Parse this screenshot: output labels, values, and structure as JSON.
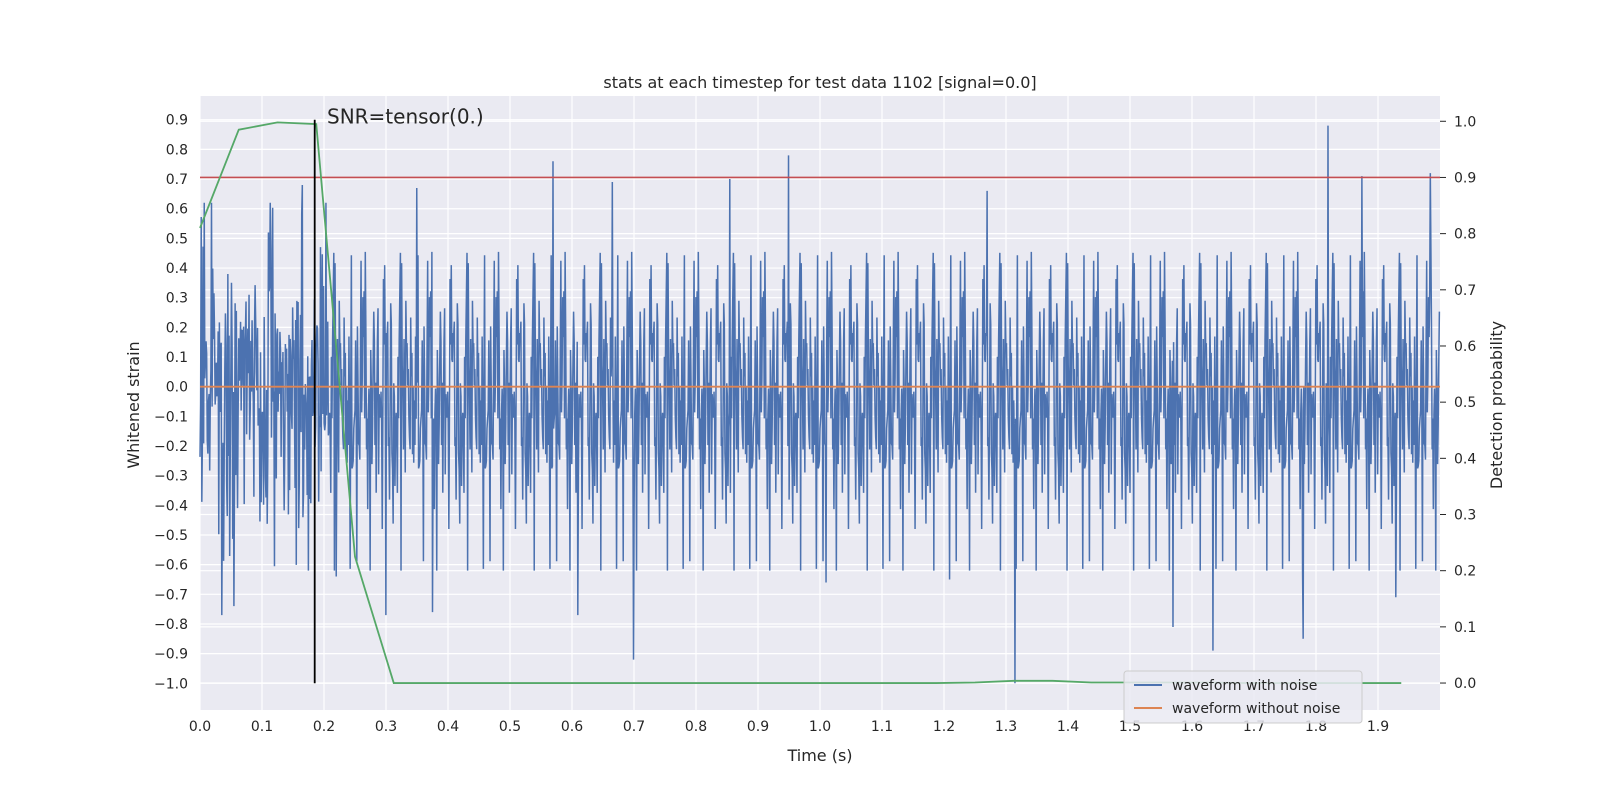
{
  "chart_data": {
    "type": "line",
    "title": "stats at each timestep for test data 1102 [signal=0.0]",
    "xlabel": "Time (s)",
    "ylabel_left": "Whitened strain",
    "ylabel_right": "Detection probability",
    "xlim": [
      0.0,
      2.0
    ],
    "ylim_left": [
      -1.09,
      0.98
    ],
    "ylim_right": [
      -0.048,
      1.045
    ],
    "xticks": [
      0.0,
      0.1,
      0.2,
      0.3,
      0.4,
      0.5,
      0.6,
      0.7,
      0.8,
      0.9,
      1.0,
      1.1,
      1.2,
      1.3,
      1.4,
      1.5,
      1.6,
      1.7,
      1.8,
      1.9
    ],
    "xtick_labels": [
      "0.0",
      "0.1",
      "0.2",
      "0.3",
      "0.4",
      "0.5",
      "0.6",
      "0.7",
      "0.8",
      "0.9",
      "1.0",
      "1.1",
      "1.2",
      "1.3",
      "1.4",
      "1.5",
      "1.6",
      "1.7",
      "1.8",
      "1.9"
    ],
    "yticks_left": [
      0.9,
      0.8,
      0.7,
      0.6,
      0.5,
      0.4,
      0.3,
      0.2,
      0.1,
      0.0,
      -0.1,
      -0.2,
      -0.3,
      -0.4,
      -0.5,
      -0.6,
      -0.7,
      -0.8,
      -0.9,
      -1.0
    ],
    "ytick_labels_left": [
      "0.9",
      "0.8",
      "0.7",
      "0.6",
      "0.5",
      "0.4",
      "0.3",
      "0.2",
      "0.1",
      "0.0",
      "−0.1",
      "−0.2",
      "−0.3",
      "−0.4",
      "−0.5",
      "−0.6",
      "−0.7",
      "−0.8",
      "−0.9",
      "−1.0"
    ],
    "yticks_right": [
      1.0,
      0.9,
      0.8,
      0.7,
      0.6,
      0.5,
      0.4,
      0.3,
      0.2,
      0.1,
      0.0
    ],
    "ytick_labels_right": [
      "1.0",
      "0.9",
      "0.8",
      "0.7",
      "0.6",
      "0.5",
      "0.4",
      "0.3",
      "0.2",
      "0.1",
      "0.0"
    ],
    "grid": true,
    "noise_series": {
      "name": "waveform with noise",
      "color": "#4c72b0",
      "num_samples": 2048,
      "seed": 1102,
      "std": 0.27,
      "spikes": [
        {
          "x": 0.035,
          "y": -0.77
        },
        {
          "x": 0.055,
          "y": -0.74
        },
        {
          "x": 0.11,
          "y": 0.52
        },
        {
          "x": 0.165,
          "y": 0.68
        },
        {
          "x": 0.22,
          "y": -0.64
        },
        {
          "x": 0.35,
          "y": 0.67
        },
        {
          "x": 0.3,
          "y": -0.77
        },
        {
          "x": 0.375,
          "y": -0.76
        },
        {
          "x": 0.57,
          "y": 0.76
        },
        {
          "x": 0.61,
          "y": -0.77
        },
        {
          "x": 0.665,
          "y": 0.69
        },
        {
          "x": 0.7,
          "y": -0.92
        },
        {
          "x": 0.855,
          "y": 0.7
        },
        {
          "x": 0.95,
          "y": 0.78
        },
        {
          "x": 1.01,
          "y": -0.66
        },
        {
          "x": 1.21,
          "y": -0.65
        },
        {
          "x": 1.27,
          "y": 0.66
        },
        {
          "x": 1.315,
          "y": -1.0
        },
        {
          "x": 1.57,
          "y": -0.81
        },
        {
          "x": 1.635,
          "y": -0.89
        },
        {
          "x": 1.78,
          "y": -0.85
        },
        {
          "x": 1.82,
          "y": 0.88
        },
        {
          "x": 1.875,
          "y": 0.71
        },
        {
          "x": 1.93,
          "y": -0.71
        },
        {
          "x": 1.985,
          "y": 0.72
        }
      ]
    },
    "clean_series": {
      "name": "waveform without noise",
      "color": "#dd8452",
      "x": [
        0.0,
        2.0
      ],
      "y": [
        0.0,
        0.0
      ]
    },
    "probability_series": {
      "name": "Detection probability",
      "color": "#55a868",
      "x": [
        0.0,
        0.0625,
        0.125,
        0.1875,
        0.25,
        0.3125,
        0.375,
        0.4375,
        0.5,
        0.5625,
        0.625,
        0.6875,
        0.75,
        0.8125,
        0.875,
        0.9375,
        1.0,
        1.0625,
        1.125,
        1.1875,
        1.25,
        1.3125,
        1.375,
        1.4375,
        1.5,
        1.5625,
        1.625,
        1.6875,
        1.75,
        1.8125,
        1.875,
        1.9375
      ],
      "y": [
        0.81,
        0.985,
        0.998,
        0.995,
        0.225,
        0.0,
        0.0,
        0.0,
        0.0,
        0.0,
        0.0,
        0.0,
        0.0,
        0.0,
        0.0,
        0.0,
        0.0,
        0.0,
        0.0,
        0.0,
        0.001,
        0.004,
        0.004,
        0.001,
        0.001,
        0.001,
        0.001,
        0.0,
        0.0,
        0.0,
        0.0,
        0.0
      ]
    },
    "threshold": {
      "y": 0.9,
      "axis": "right",
      "color": "#c44e52"
    },
    "marker_line": {
      "x": 0.185,
      "y_from": -1.0,
      "y_to": 0.9,
      "color": "#000000"
    },
    "annotation": {
      "text": "SNR=tensor(0.)",
      "x": 0.2,
      "y": 0.9
    },
    "legend": {
      "position": "lower-right",
      "entries": [
        {
          "label": "waveform with noise",
          "color": "#4c72b0"
        },
        {
          "label": "waveform without noise",
          "color": "#dd8452"
        }
      ]
    }
  }
}
